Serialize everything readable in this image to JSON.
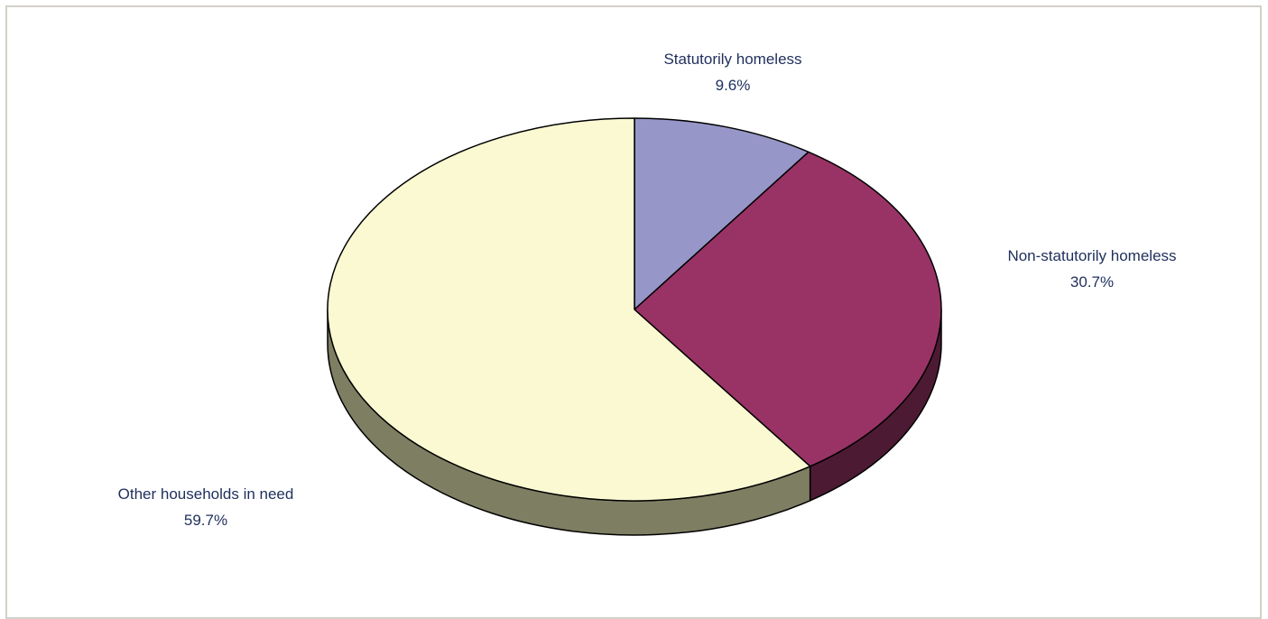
{
  "chart_data": {
    "type": "pie",
    "title": "",
    "categories": [
      "Statutorily homeless",
      "Non-statutorily homeless",
      "Other households in need"
    ],
    "values": [
      9.6,
      30.7,
      59.7
    ],
    "value_labels": [
      "9.6%",
      "30.7%",
      "59.7%"
    ],
    "colors": [
      "#9696c8",
      "#993366",
      "#fbf9d2"
    ],
    "side_colors": [
      "#55557a",
      "#4d1a33",
      "#7e7e63"
    ],
    "three_d": true,
    "legend": "none"
  }
}
